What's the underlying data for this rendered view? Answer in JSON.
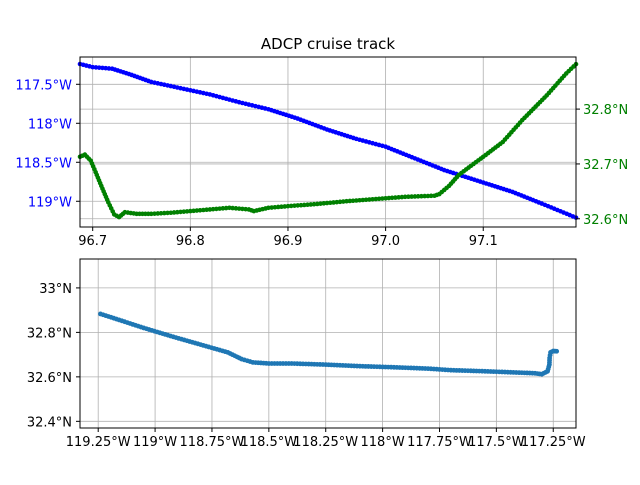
{
  "chart_data": [
    {
      "type": "line",
      "title": "ADCP cruise track",
      "xlim": [
        96.687,
        97.195
      ],
      "x_ticks": [
        96.7,
        96.8,
        96.9,
        97.0,
        97.1
      ],
      "x_tick_labels": [
        "96.7",
        "96.8",
        "96.9",
        "97.0",
        "97.1"
      ],
      "grid": true,
      "left_axis": {
        "color": "#0000ff",
        "ylim": [
          -119.33,
          -117.15
        ],
        "ticks": [
          -117.5,
          -118,
          -118.5,
          -119
        ],
        "tick_labels": [
          "117.5°W",
          "118°W",
          "118.5°W",
          "119°W"
        ]
      },
      "right_axis": {
        "color": "#008000",
        "ylim": [
          32.585,
          32.895
        ],
        "ticks": [
          32.6,
          32.7,
          32.8
        ],
        "tick_labels": [
          "32.6°N",
          "32.7°N",
          "32.8°N"
        ]
      },
      "series": [
        {
          "axis": "left",
          "color": "#0000ff",
          "points": [
            [
              96.687,
              -117.24
            ],
            [
              96.7,
              -117.28
            ],
            [
              96.72,
              -117.3
            ],
            [
              96.74,
              -117.38
            ],
            [
              96.76,
              -117.47
            ],
            [
              96.79,
              -117.55
            ],
            [
              96.82,
              -117.63
            ],
            [
              96.85,
              -117.73
            ],
            [
              96.88,
              -117.82
            ],
            [
              96.91,
              -117.94
            ],
            [
              96.94,
              -118.08
            ],
            [
              96.97,
              -118.2
            ],
            [
              97.0,
              -118.3
            ],
            [
              97.03,
              -118.45
            ],
            [
              97.06,
              -118.6
            ],
            [
              97.1,
              -118.76
            ],
            [
              97.13,
              -118.88
            ],
            [
              97.16,
              -119.03
            ],
            [
              97.195,
              -119.21
            ]
          ]
        },
        {
          "axis": "right",
          "color": "#008000",
          "points": [
            [
              96.687,
              32.713
            ],
            [
              96.692,
              32.717
            ],
            [
              96.698,
              32.706
            ],
            [
              96.703,
              32.685
            ],
            [
              96.71,
              32.655
            ],
            [
              96.716,
              32.63
            ],
            [
              96.722,
              32.608
            ],
            [
              96.727,
              32.603
            ],
            [
              96.733,
              32.612
            ],
            [
              96.745,
              32.609
            ],
            [
              96.76,
              32.609
            ],
            [
              96.78,
              32.611
            ],
            [
              96.8,
              32.614
            ],
            [
              96.82,
              32.617
            ],
            [
              96.84,
              32.62
            ],
            [
              96.86,
              32.617
            ],
            [
              96.865,
              32.614
            ],
            [
              96.88,
              32.62
            ],
            [
              96.9,
              32.623
            ],
            [
              96.93,
              32.627
            ],
            [
              96.96,
              32.632
            ],
            [
              96.99,
              32.636
            ],
            [
              97.02,
              32.64
            ],
            [
              97.05,
              32.642
            ],
            [
              97.055,
              32.645
            ],
            [
              97.065,
              32.66
            ],
            [
              97.075,
              32.68
            ],
            [
              97.09,
              32.7
            ],
            [
              97.1,
              32.713
            ],
            [
              97.12,
              32.74
            ],
            [
              97.14,
              32.78
            ],
            [
              97.165,
              32.825
            ],
            [
              97.185,
              32.865
            ],
            [
              97.195,
              32.882
            ]
          ]
        }
      ]
    },
    {
      "type": "line",
      "xlim": [
        -119.33,
        -117.15
      ],
      "ylim": [
        32.37,
        33.13
      ],
      "x_ticks": [
        -119.25,
        -119,
        -118.75,
        -118.5,
        -118.25,
        -118,
        -117.75,
        -117.5,
        -117.25
      ],
      "x_tick_labels": [
        "119.25°W",
        "119°W",
        "118.75°W",
        "118.5°W",
        "118.25°W",
        "118°W",
        "117.75°W",
        "117.5°W",
        "117.25°W"
      ],
      "y_ticks": [
        32.4,
        32.6,
        32.8,
        33.0
      ],
      "y_tick_labels": [
        "32.4°N",
        "32.6°N",
        "32.8°N",
        "33°N"
      ],
      "grid": true,
      "series": [
        {
          "color": "#1f77b4",
          "points": [
            [
              -119.24,
              32.883
            ],
            [
              -119.17,
              32.86
            ],
            [
              -119.05,
              32.82
            ],
            [
              -118.92,
              32.78
            ],
            [
              -118.8,
              32.745
            ],
            [
              -118.68,
              32.71
            ],
            [
              -118.62,
              32.68
            ],
            [
              -118.57,
              32.665
            ],
            [
              -118.5,
              32.66
            ],
            [
              -118.4,
              32.66
            ],
            [
              -118.25,
              32.655
            ],
            [
              -118.1,
              32.648
            ],
            [
              -117.95,
              32.643
            ],
            [
              -117.8,
              32.637
            ],
            [
              -117.7,
              32.63
            ],
            [
              -117.55,
              32.625
            ],
            [
              -117.4,
              32.619
            ],
            [
              -117.33,
              32.616
            ],
            [
              -117.3,
              32.612
            ],
            [
              -117.275,
              32.625
            ],
            [
              -117.267,
              32.655
            ],
            [
              -117.266,
              32.685
            ],
            [
              -117.262,
              32.71
            ],
            [
              -117.25,
              32.716
            ],
            [
              -117.235,
              32.715
            ]
          ]
        }
      ]
    }
  ]
}
